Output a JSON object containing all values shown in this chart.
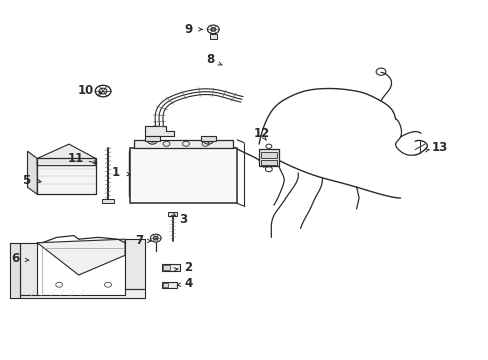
{
  "bg_color": "#ffffff",
  "fig_width": 4.89,
  "fig_height": 3.6,
  "dpi": 100,
  "lc": "#2a2a2a",
  "label_positions": {
    "9": [
      0.385,
      0.92,
      0.415,
      0.92
    ],
    "8": [
      0.43,
      0.835,
      0.455,
      0.82
    ],
    "10": [
      0.175,
      0.75,
      0.215,
      0.74
    ],
    "12": [
      0.535,
      0.63,
      0.545,
      0.61
    ],
    "13": [
      0.9,
      0.59,
      0.88,
      0.585
    ],
    "11": [
      0.155,
      0.56,
      0.205,
      0.545
    ],
    "1": [
      0.235,
      0.52,
      0.268,
      0.515
    ],
    "5": [
      0.052,
      0.5,
      0.085,
      0.495
    ],
    "3": [
      0.375,
      0.39,
      0.36,
      0.4
    ],
    "7": [
      0.285,
      0.33,
      0.31,
      0.33
    ],
    "6": [
      0.03,
      0.28,
      0.065,
      0.275
    ],
    "2": [
      0.385,
      0.255,
      0.365,
      0.252
    ],
    "4": [
      0.385,
      0.21,
      0.36,
      0.207
    ]
  }
}
